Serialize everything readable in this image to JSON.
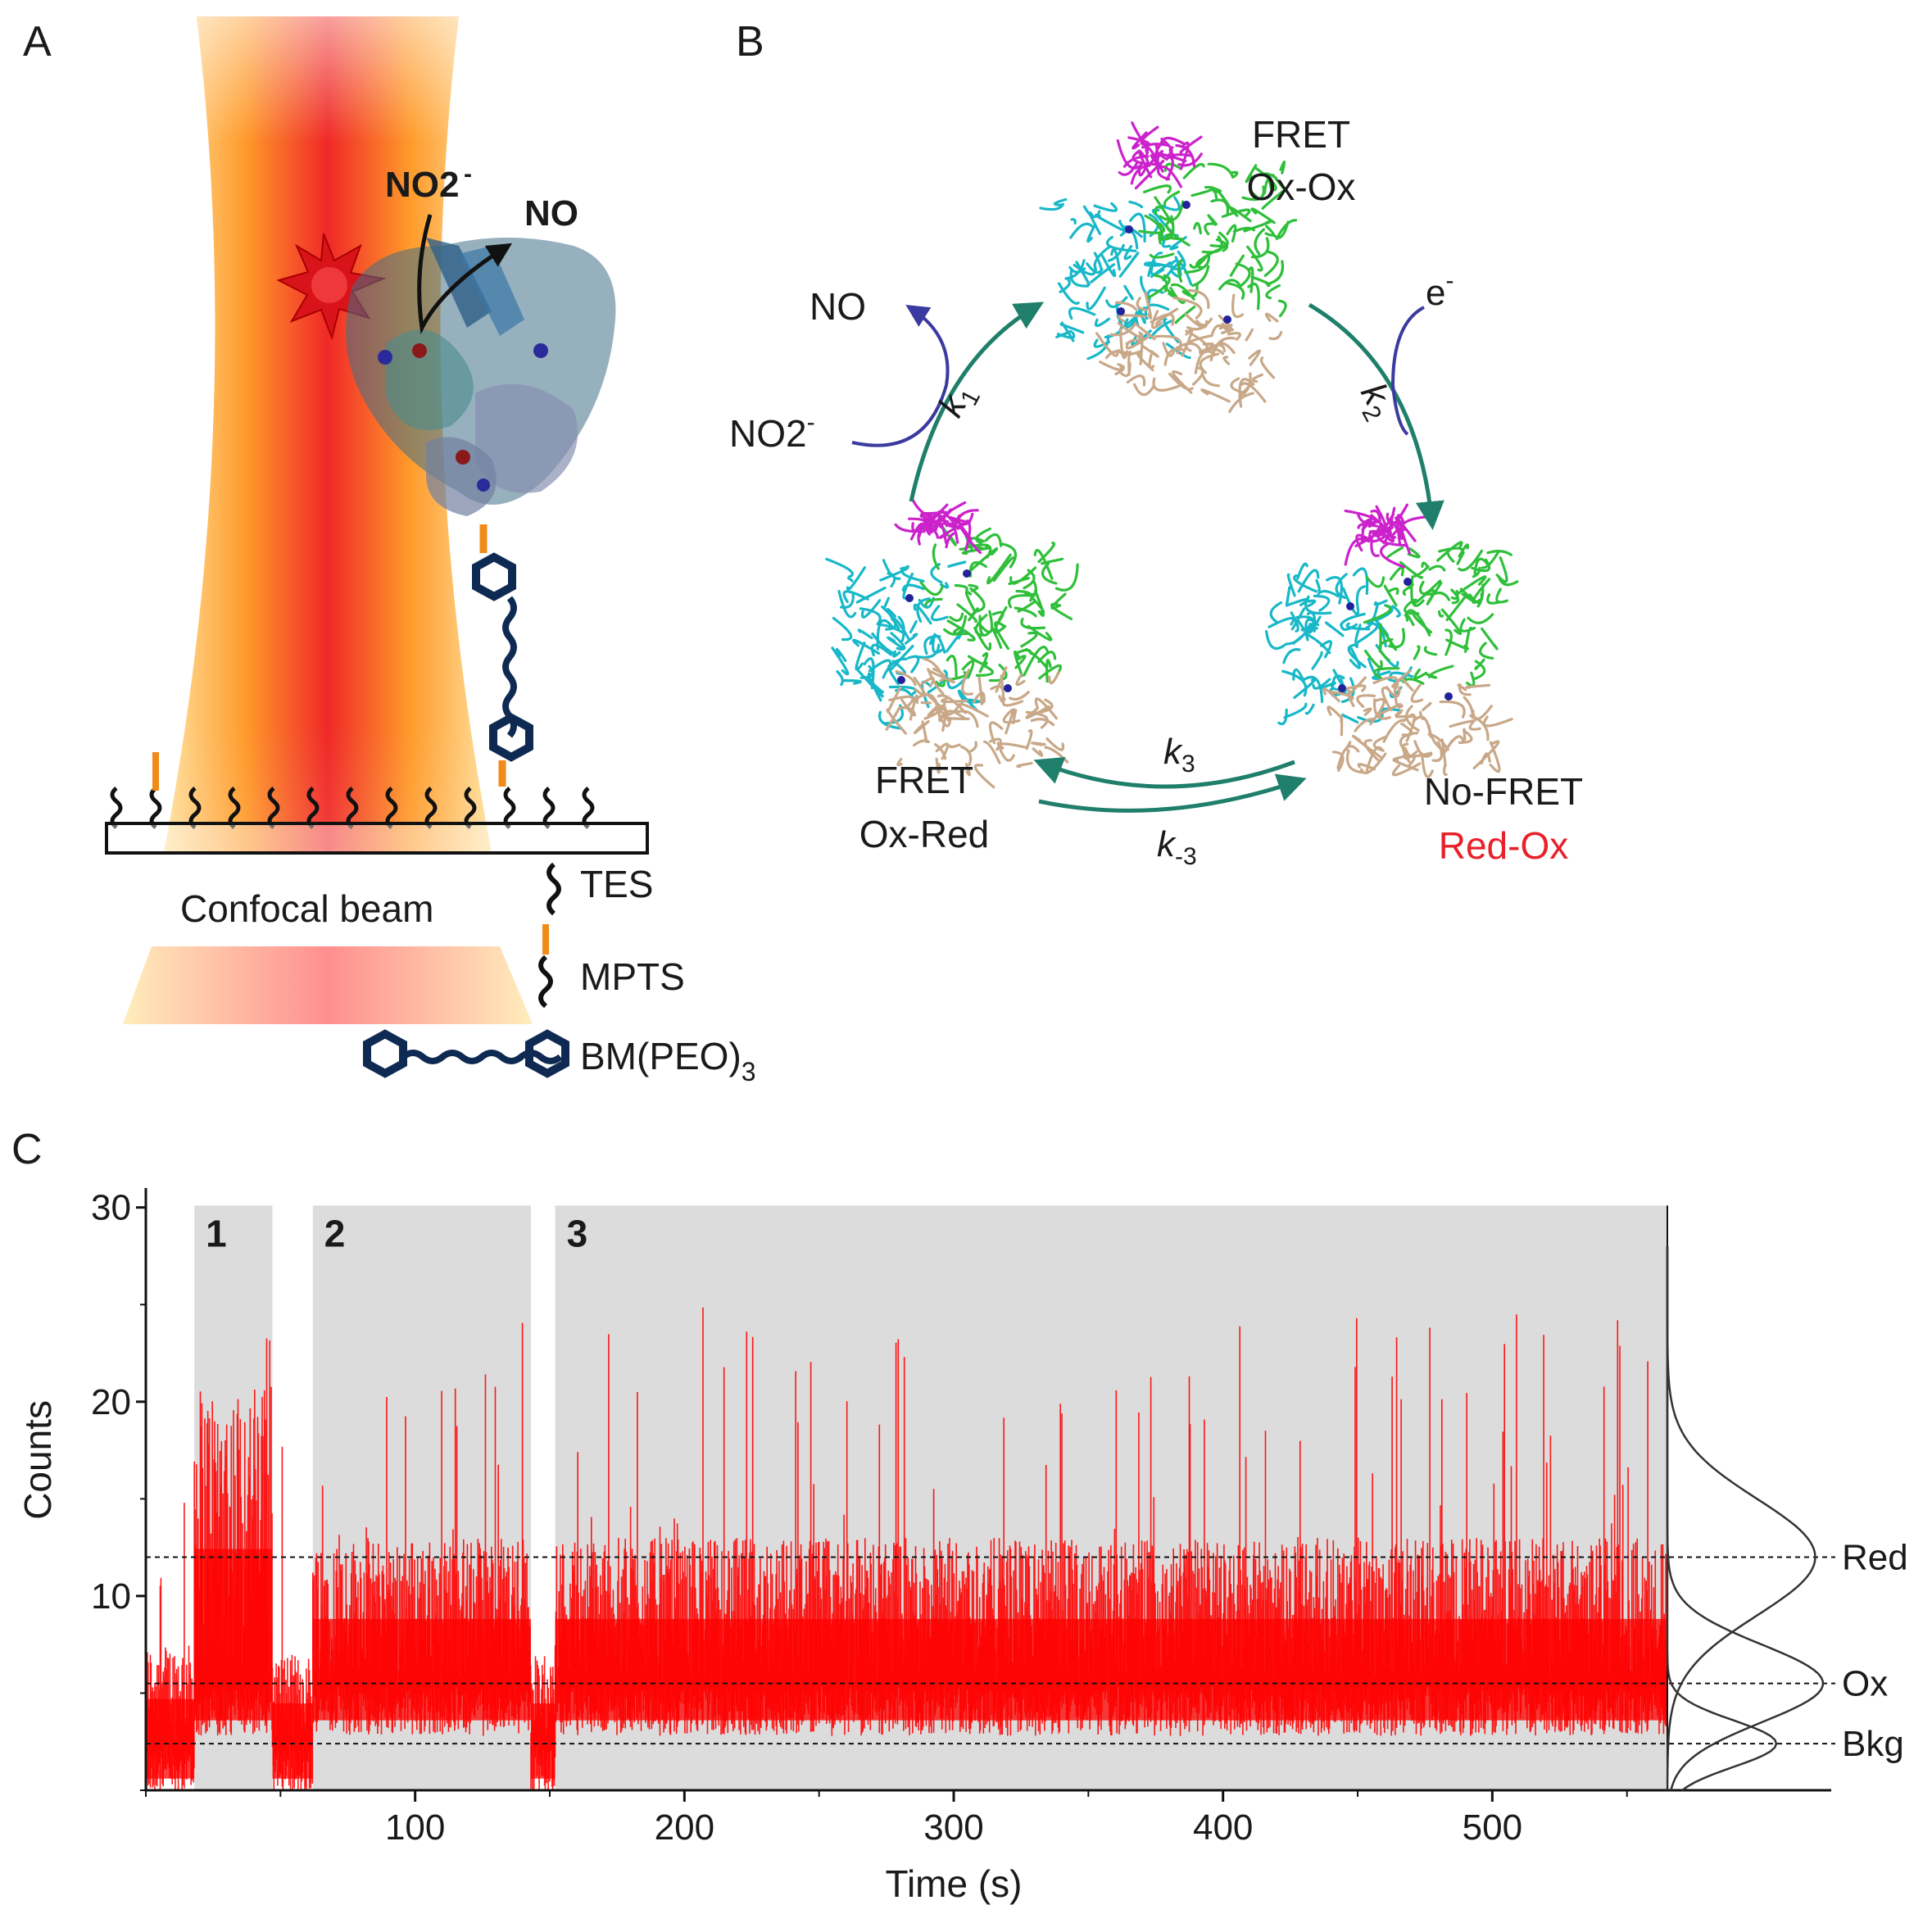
{
  "panel_a": {
    "label": "A",
    "substrate": "NO2",
    "substrate_charge": "-",
    "product": "NO",
    "beam_label": "Confocal beam",
    "legend": [
      {
        "icon": "tes-linker-icon",
        "text": "TES"
      },
      {
        "icon": "mpts-linker-icon",
        "text": "MPTS"
      },
      {
        "icon": "bm-peo-linker-icon",
        "text": "BM(PEO)",
        "sub": "3"
      }
    ]
  },
  "panel_b": {
    "label": "B",
    "states": {
      "top": {
        "line1": "FRET",
        "line2": "Ox-Ox"
      },
      "left": {
        "line1": "FRET",
        "line2": "Ox-Red"
      },
      "right": {
        "line1": "No-FRET",
        "line2": "Red-Ox"
      }
    },
    "reagents": {
      "no": "NO",
      "nitrite": "NO2",
      "nitrite_charge": "-",
      "electron": "e",
      "electron_charge": "-"
    },
    "rates": {
      "k1": "k",
      "k1_sub": "1",
      "k2": "k",
      "k2_sub": "2",
      "k3": "k",
      "k3_sub": "3",
      "km3": "k",
      "km3_sub": "-3"
    },
    "colors": {
      "red_ox": "#e8202a",
      "arrow": "#1f7f6b",
      "reagent_arrow": "#3a3aa0",
      "chain_a": "#18b8c8",
      "chain_b": "#2fbf3a",
      "chain_c": "#c8a888",
      "dye": "#cc22cc"
    }
  },
  "panel_c": {
    "label": "C",
    "region_labels": [
      "1",
      "2",
      "3"
    ],
    "level_labels": [
      "Red",
      "Ox",
      "Bkg"
    ],
    "colors": {
      "trace": "#ff0000",
      "shade": "#dcdcdc"
    }
  },
  "chart_data": {
    "type": "line",
    "xlabel": "Time (s)",
    "ylabel": "Counts",
    "xlim": [
      0,
      565
    ],
    "ylim": [
      0,
      31
    ],
    "x_ticks": [
      100,
      200,
      300,
      400,
      500
    ],
    "y_ticks": [
      10,
      20,
      30
    ],
    "shaded_regions": [
      {
        "label": "1",
        "x": [
          18,
          47
        ]
      },
      {
        "label": "2",
        "x": [
          62,
          143
        ]
      },
      {
        "label": "3",
        "x": [
          152,
          565
        ]
      }
    ],
    "segments": [
      {
        "x": [
          0,
          18
        ],
        "baseline": 2.4,
        "upper": 7.5,
        "state": "background"
      },
      {
        "x": [
          18,
          47
        ],
        "baseline": 5.4,
        "upper": 21,
        "state": "Red"
      },
      {
        "x": [
          47,
          62
        ],
        "baseline": 2.4,
        "upper": 7,
        "state": "background"
      },
      {
        "x": [
          62,
          143
        ],
        "baseline": 5.4,
        "upper": 13,
        "state": "Ox/Red"
      },
      {
        "x": [
          143,
          152
        ],
        "baseline": 2.4,
        "upper": 7,
        "state": "background"
      },
      {
        "x": [
          152,
          565
        ],
        "baseline": 5.4,
        "upper": 13,
        "state": "Ox/Red"
      }
    ],
    "reference_levels": [
      {
        "name": "Red",
        "y": 12
      },
      {
        "name": "Ox",
        "y": 5.5
      },
      {
        "name": "Bkg",
        "y": 2.4
      }
    ],
    "histogram_gaussians": [
      {
        "name": "Bkg",
        "mean": 2.4,
        "sd": 1.2,
        "amplitude": 0.7
      },
      {
        "name": "Ox",
        "mean": 5.5,
        "sd": 2.0,
        "amplitude": 1.0
      },
      {
        "name": "Red",
        "mean": 12,
        "sd": 3.0,
        "amplitude": 0.95
      }
    ]
  }
}
